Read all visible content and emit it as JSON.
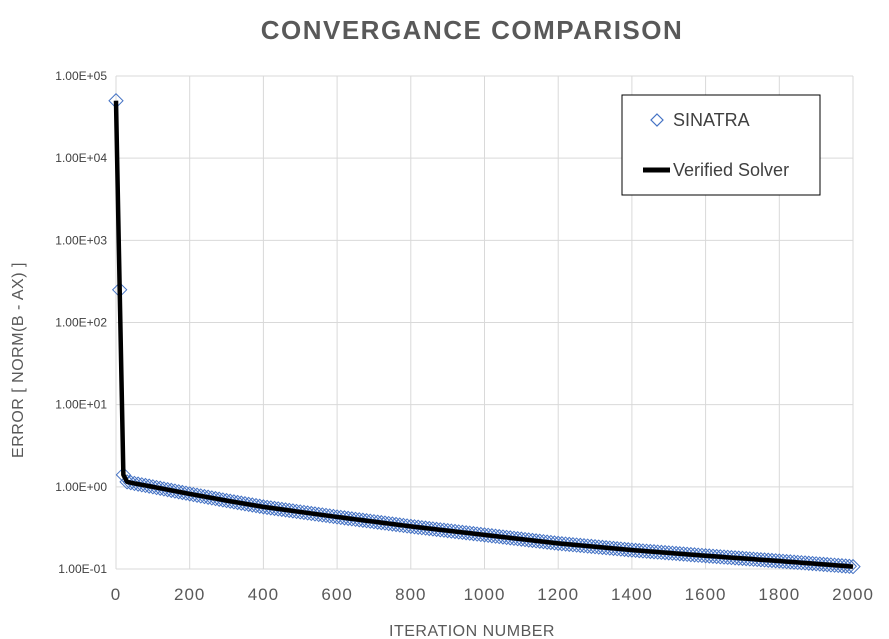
{
  "chart_data": {
    "type": "scatter",
    "title": "CONVERGANCE COMPARISON",
    "xlabel": "ITERATION  NUMBER",
    "ylabel": "ERROR [ NORM(B - AX) ]",
    "xlim": [
      0,
      2000
    ],
    "ylim": [
      0.1,
      100000
    ],
    "yscale": "log",
    "grid": true,
    "legend_position": "top-right",
    "x_ticks": [
      "0",
      "200",
      "400",
      "600",
      "800",
      "1000",
      "1200",
      "1400",
      "1600",
      "1800",
      "2000"
    ],
    "y_ticks": [
      "1.00E-01",
      "1.00E+00",
      "1.00E+01",
      "1.00E+02",
      "1.00E+03",
      "1.00E+04",
      "1.00E+05"
    ],
    "series": [
      {
        "name": "SINATRA",
        "marker": "diamond-open",
        "color": "#4472c4",
        "description_points": [
          [
            0,
            50000
          ],
          [
            10,
            250
          ],
          [
            20,
            1.4
          ],
          [
            30,
            1.15
          ],
          [
            50,
            1.1
          ],
          [
            100,
            1.0
          ],
          [
            200,
            0.82
          ],
          [
            300,
            0.68
          ],
          [
            400,
            0.57
          ],
          [
            600,
            0.43
          ],
          [
            800,
            0.33
          ],
          [
            1000,
            0.26
          ],
          [
            1200,
            0.205
          ],
          [
            1400,
            0.17
          ],
          [
            1600,
            0.145
          ],
          [
            1800,
            0.125
          ],
          [
            2000,
            0.107
          ]
        ],
        "x": [
          0,
          10,
          20,
          30,
          50,
          100,
          200,
          300,
          400,
          600,
          800,
          1000,
          1200,
          1400,
          1600,
          1800,
          2000
        ],
        "y": [
          50000,
          250,
          1.4,
          1.15,
          1.1,
          1.0,
          0.82,
          0.68,
          0.57,
          0.43,
          0.33,
          0.26,
          0.205,
          0.17,
          0.145,
          0.125,
          0.107
        ]
      },
      {
        "name": "Verified Solver",
        "line": "solid",
        "color": "#000000",
        "x": [
          0,
          10,
          20,
          30,
          50,
          100,
          200,
          300,
          400,
          600,
          800,
          1000,
          1200,
          1400,
          1600,
          1800,
          2000
        ],
        "y": [
          50000,
          250,
          1.4,
          1.15,
          1.1,
          1.0,
          0.82,
          0.68,
          0.57,
          0.43,
          0.33,
          0.26,
          0.205,
          0.17,
          0.145,
          0.125,
          0.107
        ]
      }
    ]
  }
}
